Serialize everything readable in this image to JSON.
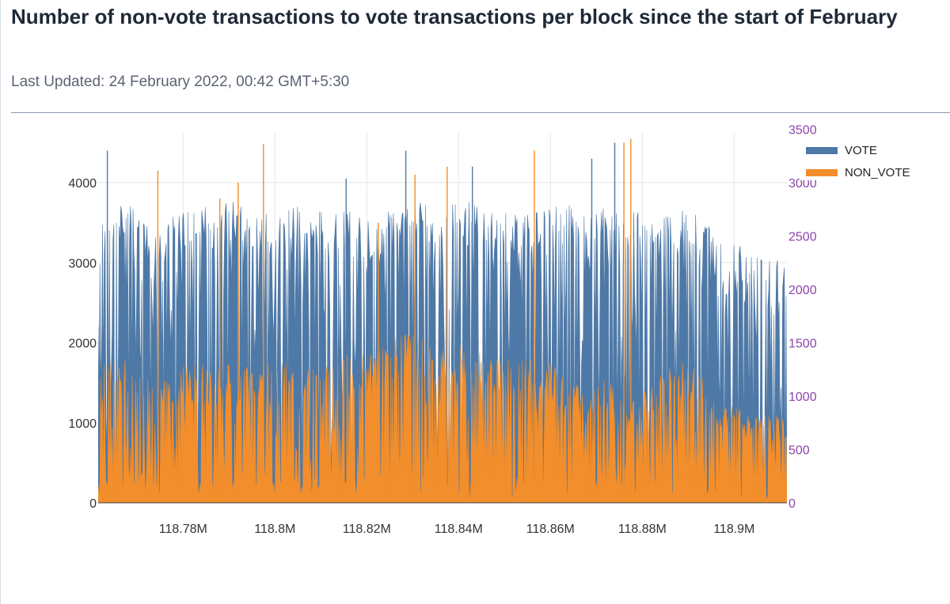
{
  "header": {
    "title": "Number of non-vote transactions to vote transactions per block since the start of February",
    "subtitle": "Last Updated: 24 February 2022, 00:42 GMT+5:30"
  },
  "colors": {
    "vote": "#4e79a7",
    "non_vote": "#f28e2b",
    "right_axis": "#8e44ad",
    "grid": "#e6e6e6",
    "axis_text": "#333333"
  },
  "chart_data": {
    "type": "area",
    "x_ticks": [
      118780000,
      118800000,
      118820000,
      118840000,
      118860000,
      118880000,
      118900000
    ],
    "x_tick_labels": [
      "118.78M",
      "118.8M",
      "118.82M",
      "118.84M",
      "118.86M",
      "118.88M",
      "118.9M"
    ],
    "xlim": [
      118761500,
      118911500
    ],
    "y_ticks": [
      0,
      1000,
      2000,
      3000,
      4000
    ],
    "ylim": [
      0,
      4800
    ],
    "y2_ticks": [
      0,
      500,
      1000,
      1500,
      2000,
      2500,
      3000,
      3500
    ],
    "y2lim": [
      0,
      3600
    ],
    "legend": {
      "position": "top-right",
      "entries": [
        {
          "name": "VOTE",
          "color": "#4e79a7"
        },
        {
          "name": "NON_VOTE",
          "color": "#f28e2b"
        }
      ]
    },
    "series": [
      {
        "name": "VOTE",
        "axis": "left",
        "x": [
          118762000,
          118767000,
          118772000,
          118777000,
          118782000,
          118787000,
          118792000,
          118797000,
          118802000,
          118807000,
          118812000,
          118817000,
          118822000,
          118827000,
          118832000,
          118837000,
          118842000,
          118847000,
          118852000,
          118857000,
          118862000,
          118867000,
          118872000,
          118877000,
          118882000,
          118887000,
          118892000,
          118897000,
          118902000,
          118907000,
          118911000
        ],
        "high": [
          3600,
          3800,
          3500,
          3600,
          3700,
          3700,
          3800,
          3600,
          3700,
          3700,
          3600,
          3700,
          3600,
          3700,
          3800,
          3700,
          3800,
          3700,
          3600,
          3700,
          3800,
          3600,
          3700,
          3700,
          3800,
          3700,
          3600,
          3300,
          3200,
          3100,
          3000
        ],
        "low": [
          1600,
          2300,
          2000,
          2100,
          2200,
          2100,
          2200,
          2100,
          2000,
          2100,
          2000,
          1900,
          2000,
          2200,
          2300,
          2200,
          2100,
          2000,
          2100,
          2000,
          1900,
          1400,
          1800,
          1500,
          1900,
          2000,
          1900,
          1300,
          1200,
          1000,
          900
        ],
        "spikes": [
          {
            "x": 118763500,
            "y": 4400
          },
          {
            "x": 118815500,
            "y": 4050
          },
          {
            "x": 118828500,
            "y": 4400
          },
          {
            "x": 118843000,
            "y": 4200
          },
          {
            "x": 118874000,
            "y": 4500
          },
          {
            "x": 118869000,
            "y": 4300
          }
        ]
      },
      {
        "name": "NON_VOTE",
        "axis": "left",
        "x": [
          118762000,
          118767000,
          118772000,
          118777000,
          118782000,
          118787000,
          118792000,
          118797000,
          118802000,
          118807000,
          118812000,
          118817000,
          118822000,
          118827000,
          118832000,
          118837000,
          118842000,
          118847000,
          118852000,
          118857000,
          118862000,
          118867000,
          118872000,
          118877000,
          118882000,
          118887000,
          118892000,
          118897000,
          118902000,
          118907000,
          118911000
        ],
        "high": [
          1700,
          1900,
          1600,
          1700,
          1800,
          1700,
          1800,
          1700,
          1800,
          1800,
          1700,
          1900,
          1900,
          2100,
          2200,
          2000,
          2000,
          1900,
          1800,
          1800,
          1700,
          1400,
          1600,
          1200,
          1500,
          1800,
          1700,
          1200,
          1200,
          1100,
          1100
        ],
        "low": [
          200,
          300,
          250,
          300,
          300,
          250,
          300,
          300,
          300,
          300,
          250,
          300,
          300,
          350,
          350,
          300,
          300,
          300,
          300,
          300,
          250,
          200,
          250,
          200,
          250,
          300,
          250,
          200,
          200,
          200,
          150
        ],
        "spikes": [
          {
            "x": 118774500,
            "y": 4150
          },
          {
            "x": 118788000,
            "y": 3800
          },
          {
            "x": 118792000,
            "y": 4000
          },
          {
            "x": 118797500,
            "y": 4480
          },
          {
            "x": 118822500,
            "y": 3500
          },
          {
            "x": 118830500,
            "y": 4100
          },
          {
            "x": 118837500,
            "y": 4200
          },
          {
            "x": 118856500,
            "y": 4400
          },
          {
            "x": 118877500,
            "y": 4550
          },
          {
            "x": 118876000,
            "y": 4500
          }
        ]
      }
    ]
  }
}
